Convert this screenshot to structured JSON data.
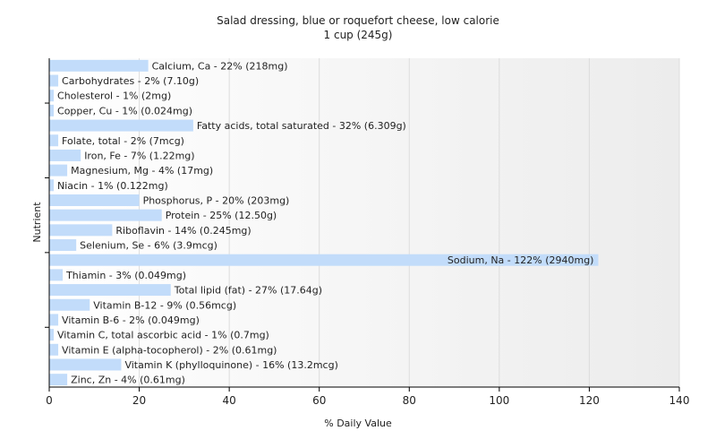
{
  "chart_data": {
    "type": "bar",
    "orientation": "horizontal",
    "title": "Salad dressing, blue or roquefort cheese, low calorie",
    "subtitle": "1 cup (245g)",
    "xlabel": "% Daily Value",
    "ylabel": "Nutrient",
    "xlim": [
      0,
      140
    ],
    "xticks": [
      0,
      20,
      40,
      60,
      80,
      100,
      120,
      140
    ],
    "grid": true,
    "bar_color": "#c2dcfa",
    "categories": [
      "Calcium, Ca",
      "Carbohydrates",
      "Cholesterol",
      "Copper, Cu",
      "Fatty acids, total saturated",
      "Folate, total",
      "Iron, Fe",
      "Magnesium, Mg",
      "Niacin",
      "Phosphorus, P",
      "Protein",
      "Riboflavin",
      "Selenium, Se",
      "Sodium, Na",
      "Thiamin",
      "Total lipid (fat)",
      "Vitamin B-12",
      "Vitamin B-6",
      "Vitamin C, total ascorbic acid",
      "Vitamin E (alpha-tocopherol)",
      "Vitamin K (phylloquinone)",
      "Zinc, Zn"
    ],
    "values": [
      22,
      2,
      1,
      1,
      32,
      2,
      7,
      4,
      1,
      20,
      25,
      14,
      6,
      122,
      3,
      27,
      9,
      2,
      1,
      2,
      16,
      4
    ],
    "labels": [
      "Calcium, Ca - 22% (218mg)",
      "Carbohydrates - 2% (7.10g)",
      "Cholesterol - 1% (2mg)",
      "Copper, Cu - 1% (0.024mg)",
      "Fatty acids, total saturated - 32% (6.309g)",
      "Folate, total - 2% (7mcg)",
      "Iron, Fe - 7% (1.22mg)",
      "Magnesium, Mg - 4% (17mg)",
      "Niacin - 1% (0.122mg)",
      "Phosphorus, P - 20% (203mg)",
      "Protein - 25% (12.50g)",
      "Riboflavin - 14% (0.245mg)",
      "Selenium, Se - 6% (3.9mcg)",
      "Sodium, Na - 122% (2940mg)",
      "Thiamin - 3% (0.049mg)",
      "Total lipid (fat) - 27% (17.64g)",
      "Vitamin B-12 - 9% (0.56mcg)",
      "Vitamin B-6 - 2% (0.049mg)",
      "Vitamin C, total ascorbic acid - 1% (0.7mg)",
      "Vitamin E (alpha-tocopherol) - 2% (0.61mg)",
      "Vitamin K (phylloquinone) - 16% (13.2mcg)",
      "Zinc, Zn - 4% (0.61mg)"
    ]
  }
}
